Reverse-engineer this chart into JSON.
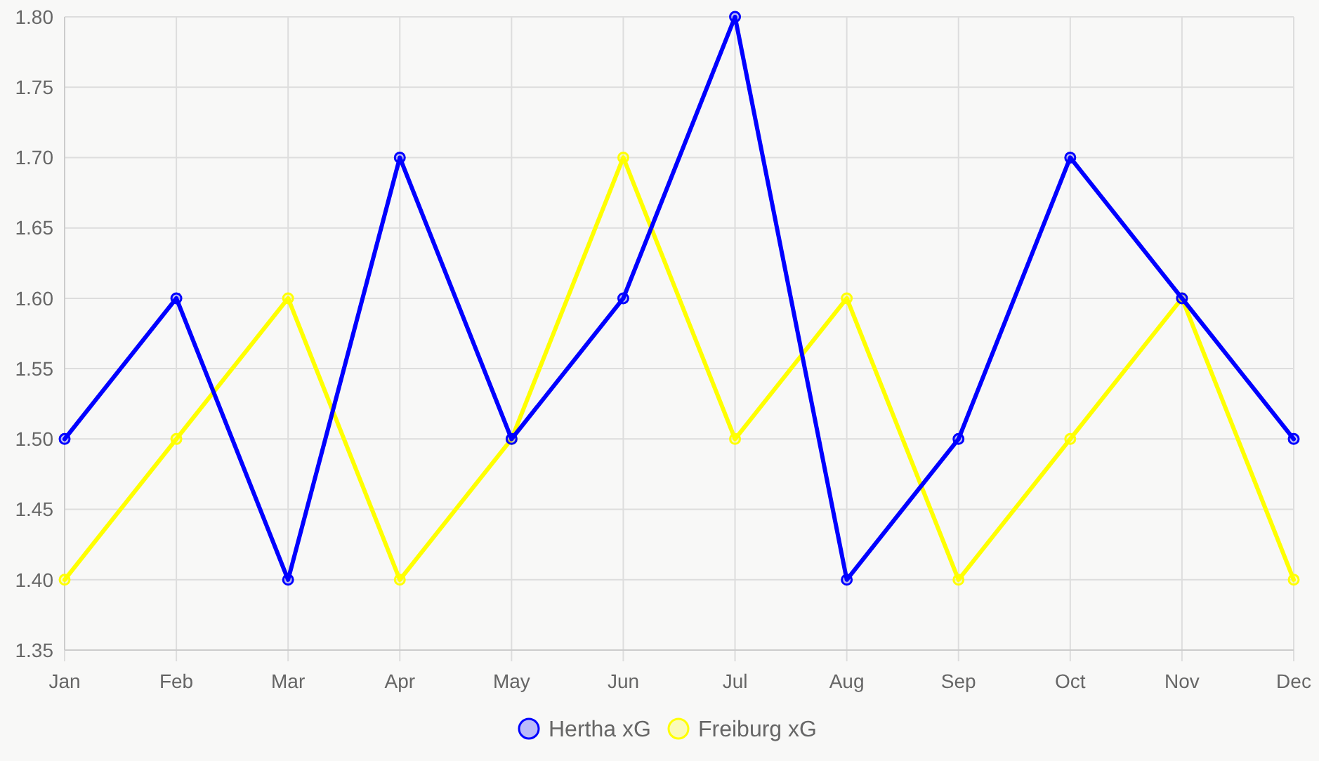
{
  "chart_data": {
    "type": "line",
    "categories": [
      "Jan",
      "Feb",
      "Mar",
      "Apr",
      "May",
      "Jun",
      "Jul",
      "Aug",
      "Sep",
      "Oct",
      "Nov",
      "Dec"
    ],
    "series": [
      {
        "name": "Hertha xG",
        "color": "#0000ff",
        "values": [
          1.5,
          1.6,
          1.4,
          1.7,
          1.5,
          1.6,
          1.8,
          1.4,
          1.5,
          1.7,
          1.6,
          1.5
        ]
      },
      {
        "name": "Freiburg xG",
        "color": "#ffff00",
        "values": [
          1.4,
          1.5,
          1.6,
          1.4,
          1.5,
          1.7,
          1.5,
          1.6,
          1.4,
          1.5,
          1.6,
          1.4
        ]
      }
    ],
    "ylim": [
      1.35,
      1.8
    ],
    "yticks": [
      {
        "value": 1.35,
        "label": "1.35"
      },
      {
        "value": 1.4,
        "label": "1.40"
      },
      {
        "value": 1.45,
        "label": "1.45"
      },
      {
        "value": 1.5,
        "label": "1.50"
      },
      {
        "value": 1.55,
        "label": "1.55"
      },
      {
        "value": 1.6,
        "label": "1.60"
      },
      {
        "value": 1.65,
        "label": "1.65"
      },
      {
        "value": 1.7,
        "label": "1.70"
      },
      {
        "value": 1.75,
        "label": "1.75"
      },
      {
        "value": 1.8,
        "label": "1.80"
      }
    ],
    "grid": true,
    "legend": "bottom",
    "marker": "circle",
    "line_style": "solid"
  }
}
